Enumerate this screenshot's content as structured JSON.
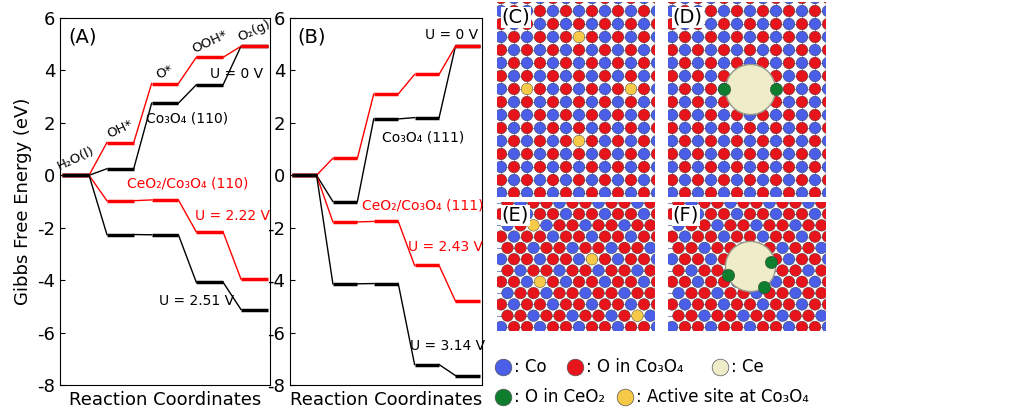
{
  "chart_data": [
    {
      "type": "step",
      "title": "(A)",
      "y_label": "Gibbs Free Energy (eV)",
      "x_label": "Reaction Coordinates",
      "categories": [
        "H₂O(l)",
        "OH*",
        "O*",
        "OOH*",
        "O₂(g)"
      ],
      "tick_labels": "y",
      "ylim": [
        -8,
        6
      ],
      "yticks": [
        -8,
        -6,
        -4,
        -2,
        0,
        2,
        4,
        6
      ],
      "series": [
        {
          "color": "#000000",
          "values": [
            0,
            0.25,
            2.75,
            3.45,
            4.92
          ],
          "annotations": [
            "Co₃O₄ (110)",
            "U = 0 V"
          ]
        },
        {
          "color": "#ff0000",
          "values": [
            0,
            1.25,
            3.5,
            4.5,
            4.92
          ]
        },
        {
          "color": "#ff0000",
          "values": [
            0,
            -0.97,
            -0.94,
            -2.16,
            -3.96
          ],
          "annotations": [
            "CeO₂/Co₃O₄ (110)",
            "U = 2.22 V"
          ]
        },
        {
          "color": "#000000",
          "values": [
            0,
            -2.26,
            -2.27,
            -4.08,
            -5.12
          ],
          "annotations": [
            "U = 2.51 V"
          ]
        }
      ]
    },
    {
      "type": "step",
      "title": "(B)",
      "x_label": "Reaction Coordinates",
      "categories": [
        null,
        null,
        null,
        null,
        null
      ],
      "tick_labels": "y",
      "ylim": [
        -8,
        6
      ],
      "yticks": [
        -8,
        -6,
        -4,
        -2,
        0,
        2,
        4,
        6
      ],
      "series": [
        {
          "color": "#000000",
          "values": [
            0,
            -1.0,
            2.15,
            2.2,
            4.92
          ],
          "annotations": [
            "Co₃O₄ (111)",
            "U = 0 V"
          ]
        },
        {
          "color": "#ff0000",
          "values": [
            0,
            0.65,
            3.1,
            3.85,
            4.92
          ]
        },
        {
          "color": "#ff0000",
          "values": [
            0,
            -1.78,
            -1.76,
            -3.44,
            -4.8
          ],
          "annotations": [
            "CeO₂/Co₃O₄ (111)",
            "U = 2.43 V"
          ]
        },
        {
          "color": "#000000",
          "values": [
            0,
            -4.14,
            -4.13,
            -7.22,
            -7.64
          ],
          "annotations": [
            "U = 3.14 V"
          ]
        }
      ]
    }
  ],
  "structure_panels": [
    "(C)",
    "(D)",
    "(E)",
    "(F)"
  ],
  "atom_legend": [
    {
      "text": ": Co",
      "color": "#4a5ee8"
    },
    {
      "text": ": O in Co₃O₄",
      "color": "#e8141c"
    },
    {
      "text": ": Ce",
      "color": "#efedc9"
    },
    {
      "text": ": O in CeO₂",
      "color": "#0f7d2e"
    },
    {
      "text": ": Active site at Co₃O₄",
      "color": "#f7c948"
    }
  ]
}
